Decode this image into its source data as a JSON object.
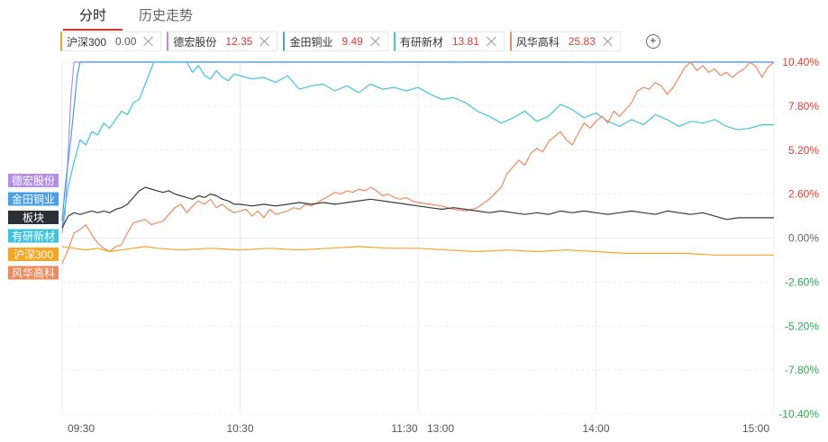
{
  "tabs": [
    {
      "label": "分时",
      "active": true
    },
    {
      "label": "历史走势",
      "active": false
    }
  ],
  "chips": [
    {
      "name": "沪深300",
      "value": "0.00",
      "color": "#f5a623",
      "value_color": "#555555"
    },
    {
      "name": "德宏股份",
      "value": "12.35",
      "color": "#b48ee8",
      "value_color": "#e03c31"
    },
    {
      "name": "金田铜业",
      "value": "9.49",
      "color": "#4a9ee6",
      "value_color": "#e03c31"
    },
    {
      "name": "有研新材",
      "value": "13.81",
      "color": "#3ec4e0",
      "value_color": "#e03c31"
    },
    {
      "name": "风华高科",
      "value": "25.83",
      "color": "#f08a5d",
      "value_color": "#e03c31"
    }
  ],
  "add_icon": "plus-circle-icon",
  "chart_data": {
    "type": "line",
    "x_ticks": [
      "09:30",
      "10:30",
      "11:30",
      "13:00",
      "14:00",
      "15:00"
    ],
    "y_ticks": [
      "10.40%",
      "7.80%",
      "5.20%",
      "2.60%",
      "0.00%",
      "-2.60%",
      "-5.20%",
      "-7.80%",
      "-10.40%"
    ],
    "ylim": [
      -10.4,
      10.4
    ],
    "y_tick_colors": {
      "positive": "#e03c31",
      "zero": "#666666",
      "negative": "#2aa852"
    },
    "grid": true,
    "x_minutes": [
      0,
      60,
      120,
      180,
      240
    ],
    "series": [
      {
        "name": "德宏股份",
        "color": "#b48ee8",
        "points": [
          [
            0,
            0.3
          ],
          [
            1,
            1.5
          ],
          [
            2,
            5.0
          ],
          [
            3,
            8.5
          ],
          [
            4,
            10.4
          ],
          [
            240,
            10.4
          ]
        ]
      },
      {
        "name": "金田铜业",
        "color": "#4a9ee6",
        "points": [
          [
            0,
            1.0
          ],
          [
            1,
            3.0
          ],
          [
            3,
            6.0
          ],
          [
            5,
            9.5
          ],
          [
            6,
            10.4
          ],
          [
            240,
            10.4
          ]
        ]
      },
      {
        "name": "有研新材",
        "color": "#3ec4e0",
        "points": [
          [
            0,
            0.7
          ],
          [
            2,
            3.0
          ],
          [
            4,
            4.5
          ],
          [
            6,
            5.8
          ],
          [
            8,
            5.5
          ],
          [
            10,
            6.3
          ],
          [
            12,
            6.1
          ],
          [
            14,
            6.8
          ],
          [
            16,
            6.5
          ],
          [
            18,
            7.0
          ],
          [
            20,
            7.5
          ],
          [
            22,
            7.3
          ],
          [
            24,
            8.0
          ],
          [
            26,
            8.2
          ],
          [
            28,
            9.1
          ],
          [
            30,
            10.0
          ],
          [
            31,
            10.4
          ],
          [
            42,
            10.4
          ],
          [
            44,
            9.8
          ],
          [
            46,
            10.2
          ],
          [
            48,
            9.6
          ],
          [
            50,
            9.4
          ],
          [
            52,
            9.9
          ],
          [
            54,
            9.5
          ],
          [
            56,
            9.3
          ],
          [
            58,
            9.7
          ],
          [
            60,
            9.6
          ],
          [
            64,
            9.4
          ],
          [
            68,
            9.5
          ],
          [
            72,
            9.2
          ],
          [
            76,
            9.6
          ],
          [
            80,
            8.8
          ],
          [
            84,
            9.0
          ],
          [
            88,
            9.1
          ],
          [
            92,
            8.7
          ],
          [
            96,
            9.0
          ],
          [
            100,
            8.6
          ],
          [
            104,
            9.1
          ],
          [
            108,
            8.8
          ],
          [
            112,
            8.9
          ],
          [
            116,
            8.7
          ],
          [
            120,
            8.9
          ],
          [
            124,
            8.5
          ],
          [
            128,
            8.2
          ],
          [
            132,
            8.3
          ],
          [
            136,
            8.0
          ],
          [
            140,
            7.5
          ],
          [
            144,
            7.2
          ],
          [
            148,
            6.8
          ],
          [
            152,
            7.1
          ],
          [
            156,
            7.5
          ],
          [
            160,
            6.9
          ],
          [
            164,
            7.2
          ],
          [
            168,
            7.9
          ],
          [
            172,
            7.6
          ],
          [
            176,
            7.1
          ],
          [
            180,
            7.4
          ],
          [
            184,
            6.9
          ],
          [
            188,
            6.6
          ],
          [
            192,
            7.0
          ],
          [
            196,
            6.7
          ],
          [
            200,
            7.3
          ],
          [
            204,
            7.0
          ],
          [
            208,
            6.6
          ],
          [
            212,
            6.9
          ],
          [
            216,
            6.8
          ],
          [
            220,
            7.0
          ],
          [
            224,
            6.6
          ],
          [
            228,
            6.4
          ],
          [
            232,
            6.5
          ],
          [
            236,
            6.7
          ],
          [
            240,
            6.7
          ]
        ]
      },
      {
        "name": "风华高科",
        "color": "#f08a5d",
        "points": [
          [
            0,
            -1.5
          ],
          [
            2,
            -0.7
          ],
          [
            4,
            0.3
          ],
          [
            6,
            0.5
          ],
          [
            8,
            0.8
          ],
          [
            10,
            0.2
          ],
          [
            12,
            -0.3
          ],
          [
            14,
            -0.6
          ],
          [
            16,
            -0.8
          ],
          [
            18,
            -0.5
          ],
          [
            20,
            -0.4
          ],
          [
            22,
            0.3
          ],
          [
            24,
            0.9
          ],
          [
            26,
            1.0
          ],
          [
            28,
            1.1
          ],
          [
            30,
            0.8
          ],
          [
            32,
            0.9
          ],
          [
            34,
            1.0
          ],
          [
            36,
            1.4
          ],
          [
            38,
            1.8
          ],
          [
            40,
            2.0
          ],
          [
            42,
            1.5
          ],
          [
            44,
            1.9
          ],
          [
            46,
            2.2
          ],
          [
            48,
            2.0
          ],
          [
            50,
            2.3
          ],
          [
            52,
            1.8
          ],
          [
            54,
            2.0
          ],
          [
            56,
            1.7
          ],
          [
            58,
            1.5
          ],
          [
            60,
            1.6
          ],
          [
            62,
            1.7
          ],
          [
            64,
            1.3
          ],
          [
            66,
            1.6
          ],
          [
            68,
            1.2
          ],
          [
            70,
            1.7
          ],
          [
            72,
            1.4
          ],
          [
            74,
            1.5
          ],
          [
            76,
            1.6
          ],
          [
            78,
            1.8
          ],
          [
            80,
            1.7
          ],
          [
            82,
            2.0
          ],
          [
            84,
            1.9
          ],
          [
            86,
            2.1
          ],
          [
            88,
            2.3
          ],
          [
            90,
            2.5
          ],
          [
            92,
            2.7
          ],
          [
            94,
            2.6
          ],
          [
            96,
            2.8
          ],
          [
            98,
            2.7
          ],
          [
            100,
            2.9
          ],
          [
            102,
            2.8
          ],
          [
            104,
            3.0
          ],
          [
            106,
            2.8
          ],
          [
            108,
            2.5
          ],
          [
            110,
            2.6
          ],
          [
            112,
            2.4
          ],
          [
            114,
            2.3
          ],
          [
            116,
            2.4
          ],
          [
            118,
            2.2
          ],
          [
            120,
            2.1
          ],
          [
            124,
            2.0
          ],
          [
            128,
            1.9
          ],
          [
            132,
            1.7
          ],
          [
            136,
            1.6
          ],
          [
            140,
            1.8
          ],
          [
            144,
            2.3
          ],
          [
            148,
            3.0
          ],
          [
            150,
            3.8
          ],
          [
            152,
            4.2
          ],
          [
            154,
            4.6
          ],
          [
            156,
            4.3
          ],
          [
            158,
            5.0
          ],
          [
            160,
            5.3
          ],
          [
            162,
            5.1
          ],
          [
            164,
            5.7
          ],
          [
            166,
            6.0
          ],
          [
            168,
            6.3
          ],
          [
            170,
            5.8
          ],
          [
            172,
            5.5
          ],
          [
            174,
            6.2
          ],
          [
            176,
            6.8
          ],
          [
            178,
            6.5
          ],
          [
            180,
            6.9
          ],
          [
            182,
            7.2
          ],
          [
            184,
            6.8
          ],
          [
            186,
            7.5
          ],
          [
            188,
            7.2
          ],
          [
            190,
            7.6
          ],
          [
            192,
            8.0
          ],
          [
            194,
            8.7
          ],
          [
            196,
            8.9
          ],
          [
            198,
            8.8
          ],
          [
            200,
            9.2
          ],
          [
            202,
            9.0
          ],
          [
            204,
            8.5
          ],
          [
            206,
            8.9
          ],
          [
            208,
            9.5
          ],
          [
            210,
            10.1
          ],
          [
            212,
            10.4
          ],
          [
            214,
            9.9
          ],
          [
            216,
            10.2
          ],
          [
            218,
            9.8
          ],
          [
            220,
            10.0
          ],
          [
            222,
            9.6
          ],
          [
            224,
            9.8
          ],
          [
            226,
            9.5
          ],
          [
            228,
            9.8
          ],
          [
            230,
            10.0
          ],
          [
            232,
            10.4
          ],
          [
            234,
            10.1
          ],
          [
            236,
            9.5
          ],
          [
            238,
            10.1
          ],
          [
            240,
            10.4
          ]
        ]
      },
      {
        "name": "板块",
        "color": "#3a3a3a",
        "points": [
          [
            0,
            0.6
          ],
          [
            2,
            1.3
          ],
          [
            4,
            1.5
          ],
          [
            6,
            1.4
          ],
          [
            8,
            1.5
          ],
          [
            10,
            1.6
          ],
          [
            12,
            1.5
          ],
          [
            14,
            1.6
          ],
          [
            16,
            1.5
          ],
          [
            18,
            1.7
          ],
          [
            20,
            1.8
          ],
          [
            22,
            2.0
          ],
          [
            24,
            2.4
          ],
          [
            26,
            2.8
          ],
          [
            28,
            3.0
          ],
          [
            30,
            2.9
          ],
          [
            32,
            2.8
          ],
          [
            34,
            2.7
          ],
          [
            36,
            2.8
          ],
          [
            38,
            2.6
          ],
          [
            40,
            2.5
          ],
          [
            42,
            2.4
          ],
          [
            44,
            2.3
          ],
          [
            46,
            2.5
          ],
          [
            48,
            2.4
          ],
          [
            50,
            2.6
          ],
          [
            52,
            2.5
          ],
          [
            54,
            2.3
          ],
          [
            56,
            2.2
          ],
          [
            58,
            2.0
          ],
          [
            60,
            2.0
          ],
          [
            64,
            1.9
          ],
          [
            68,
            2.0
          ],
          [
            72,
            1.9
          ],
          [
            76,
            2.0
          ],
          [
            80,
            2.1
          ],
          [
            84,
            2.0
          ],
          [
            88,
            2.1
          ],
          [
            92,
            2.0
          ],
          [
            96,
            2.1
          ],
          [
            100,
            2.2
          ],
          [
            104,
            2.3
          ],
          [
            108,
            2.2
          ],
          [
            112,
            2.1
          ],
          [
            116,
            2.0
          ],
          [
            120,
            1.9
          ],
          [
            124,
            1.8
          ],
          [
            128,
            1.7
          ],
          [
            132,
            1.8
          ],
          [
            136,
            1.7
          ],
          [
            140,
            1.6
          ],
          [
            144,
            1.5
          ],
          [
            148,
            1.6
          ],
          [
            152,
            1.5
          ],
          [
            156,
            1.4
          ],
          [
            160,
            1.5
          ],
          [
            164,
            1.4
          ],
          [
            168,
            1.6
          ],
          [
            172,
            1.5
          ],
          [
            176,
            1.6
          ],
          [
            180,
            1.5
          ],
          [
            184,
            1.4
          ],
          [
            188,
            1.5
          ],
          [
            192,
            1.6
          ],
          [
            196,
            1.5
          ],
          [
            200,
            1.4
          ],
          [
            204,
            1.6
          ],
          [
            208,
            1.5
          ],
          [
            212,
            1.4
          ],
          [
            216,
            1.5
          ],
          [
            220,
            1.3
          ],
          [
            224,
            1.1
          ],
          [
            228,
            1.2
          ],
          [
            232,
            1.2
          ],
          [
            236,
            1.2
          ],
          [
            240,
            1.2
          ]
        ]
      },
      {
        "name": "沪深300",
        "color": "#f5a623",
        "points": [
          [
            0,
            -0.5
          ],
          [
            4,
            -0.6
          ],
          [
            8,
            -0.7
          ],
          [
            12,
            -0.6
          ],
          [
            16,
            -0.8
          ],
          [
            20,
            -0.7
          ],
          [
            24,
            -0.6
          ],
          [
            28,
            -0.5
          ],
          [
            32,
            -0.6
          ],
          [
            40,
            -0.7
          ],
          [
            50,
            -0.6
          ],
          [
            60,
            -0.7
          ],
          [
            70,
            -0.6
          ],
          [
            80,
            -0.7
          ],
          [
            90,
            -0.6
          ],
          [
            100,
            -0.5
          ],
          [
            110,
            -0.6
          ],
          [
            120,
            -0.6
          ],
          [
            130,
            -0.7
          ],
          [
            140,
            -0.8
          ],
          [
            150,
            -0.7
          ],
          [
            160,
            -0.8
          ],
          [
            170,
            -0.7
          ],
          [
            180,
            -0.8
          ],
          [
            190,
            -0.9
          ],
          [
            200,
            -0.9
          ],
          [
            210,
            -0.9
          ],
          [
            220,
            -1.0
          ],
          [
            230,
            -1.0
          ],
          [
            240,
            -1.0
          ]
        ]
      }
    ],
    "left_tags": [
      {
        "label": "德宏股份",
        "color": "#b48ee8"
      },
      {
        "label": "金田铜业",
        "color": "#4a9ee6"
      },
      {
        "label": "板块",
        "color": "#2b2f36"
      },
      {
        "label": "有研新材",
        "color": "#3ec4e0"
      },
      {
        "label": "沪深300",
        "color": "#f5a623"
      },
      {
        "label": "风华高科",
        "color": "#f08a5d"
      }
    ]
  }
}
